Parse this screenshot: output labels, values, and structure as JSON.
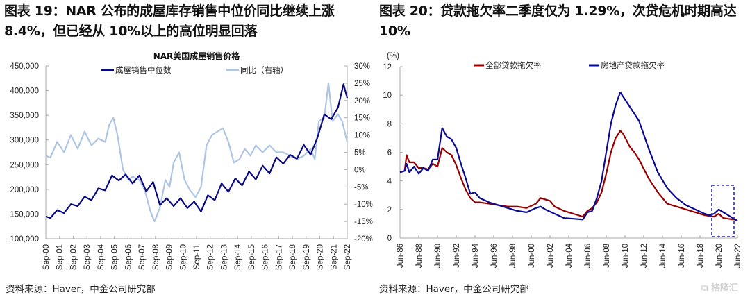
{
  "titles": {
    "left": "图表 19：NAR 公布的成屋库存销售中位价同比继续上涨 8.4%，但已经从 10%以上的高位明显回落",
    "right": "图表 20：贷款拖欠率二季度仅为 1.29%，次贷危机时期高达 10%"
  },
  "sources": {
    "left": "资料来源：Haver，中金公司研究部",
    "right": "资料来源：Haver，中金公司研究部"
  },
  "watermark": "格隆汇",
  "colors": {
    "navy": "#0a0a80",
    "lightblue": "#aec6e4",
    "darkred": "#960000",
    "blue": "#0a0a90",
    "neg": "#ff0000",
    "axis": "#aaaaaa"
  },
  "chart_data": [
    {
      "type": "line",
      "title": "NAR美国成屋销售价格",
      "x_ticks": [
        "Sep-00",
        "Sep-01",
        "Sep-02",
        "Sep-03",
        "Sep-04",
        "Sep-05",
        "Sep-06",
        "Sep-07",
        "Sep-08",
        "Sep-09",
        "Sep-10",
        "Sep-11",
        "Sep-12",
        "Sep-13",
        "Sep-14",
        "Sep-15",
        "Sep-16",
        "Sep-17",
        "Sep-18",
        "Sep-19",
        "Sep-20",
        "Sep-21",
        "Sep-22"
      ],
      "xlim": [
        2000.67,
        2022.67
      ],
      "y_left": {
        "ylim": [
          100000,
          450000
        ],
        "ticks": [
          "100,000",
          "150,000",
          "200,000",
          "250,000",
          "300,000",
          "350,000",
          "400,000",
          "450,000"
        ]
      },
      "y_right": {
        "ylim": [
          -20,
          30
        ],
        "ticks": [
          "-20%",
          "-15%",
          "-10%",
          "-5%",
          "0%",
          "5%",
          "10%",
          "15%",
          "20%",
          "25%",
          "30%"
        ]
      },
      "legend": "top",
      "series": [
        {
          "name": "成屋销售中位数",
          "axis": "left",
          "x": [
            2000.67,
            2001.0,
            2001.5,
            2002.0,
            2002.5,
            2003.0,
            2003.5,
            2004.0,
            2004.5,
            2005.0,
            2005.5,
            2006.0,
            2006.5,
            2007.0,
            2007.5,
            2008.0,
            2008.5,
            2009.0,
            2009.5,
            2010.0,
            2010.5,
            2011.0,
            2011.5,
            2012.0,
            2012.5,
            2013.0,
            2013.5,
            2014.0,
            2014.5,
            2015.0,
            2015.5,
            2016.0,
            2016.5,
            2017.0,
            2017.5,
            2018.0,
            2018.5,
            2019.0,
            2019.5,
            2020.0,
            2020.5,
            2021.0,
            2021.5,
            2022.0,
            2022.4,
            2022.67
          ],
          "values": [
            145000,
            142000,
            158000,
            152000,
            170000,
            166000,
            185000,
            178000,
            202000,
            198000,
            228000,
            218000,
            230000,
            212000,
            228000,
            196000,
            215000,
            168000,
            182000,
            166000,
            182000,
            162000,
            175000,
            155000,
            188000,
            178000,
            212000,
            195000,
            222000,
            208000,
            236000,
            220000,
            248000,
            232000,
            265000,
            252000,
            270000,
            262000,
            290000,
            270000,
            305000,
            352000,
            342000,
            366000,
            413000,
            385000
          ]
        },
        {
          "name": "同比（右轴）",
          "axis": "right",
          "x": [
            2000.67,
            2001.0,
            2001.5,
            2002.0,
            2002.5,
            2003.0,
            2003.5,
            2004.0,
            2004.5,
            2005.0,
            2005.3,
            2005.6,
            2005.9,
            2006.3,
            2006.7,
            2007.0,
            2007.5,
            2007.9,
            2008.3,
            2008.6,
            2009.0,
            2009.4,
            2009.7,
            2010.0,
            2010.4,
            2010.8,
            2011.2,
            2011.6,
            2012.0,
            2012.4,
            2012.8,
            2013.2,
            2013.6,
            2014.0,
            2014.4,
            2014.8,
            2015.2,
            2015.6,
            2016.0,
            2016.5,
            2017.0,
            2017.5,
            2018.0,
            2018.5,
            2019.0,
            2019.5,
            2020.0,
            2020.3,
            2020.6,
            2021.0,
            2021.3,
            2021.6,
            2022.0,
            2022.3,
            2022.67
          ],
          "values": [
            4,
            3.5,
            8,
            5,
            10,
            6,
            11,
            7,
            9,
            8,
            13,
            15,
            10,
            0,
            -3,
            -2,
            -3,
            -6,
            -12,
            -15,
            -11,
            -3,
            -5,
            2,
            5,
            -3,
            -6,
            -8,
            -5,
            7,
            10,
            11,
            12,
            8,
            2,
            3,
            6,
            4,
            7,
            5,
            7,
            5,
            5,
            4,
            3,
            4,
            6,
            3,
            14,
            15,
            25,
            14,
            16,
            14,
            8
          ]
        }
      ]
    },
    {
      "type": "line",
      "unit_label": "(%)",
      "x_ticks": [
        "Jun-86",
        "Jun-88",
        "Jun-90",
        "Jun-92",
        "Jun-94",
        "Jun-96",
        "Jun-98",
        "Jun-00",
        "Jun-02",
        "Jun-04",
        "Jun-06",
        "Jun-08",
        "Jun-10",
        "Jun-12",
        "Jun-14",
        "Jun-16",
        "Jun-18",
        "Jun-20",
        "Jun-22"
      ],
      "xlim": [
        1986.5,
        2022.5
      ],
      "ylim": [
        0,
        12
      ],
      "y_ticks": [
        "0",
        "2",
        "4",
        "6",
        "8",
        "10",
        "12"
      ],
      "legend": "top",
      "annotation": "dashed box around Jun-20 to Jun-22",
      "series": [
        {
          "name": "全部贷款拖欠率",
          "x": [
            1986.5,
            1987.0,
            1987.2,
            1987.5,
            1988.0,
            1988.5,
            1989.0,
            1989.5,
            1990.0,
            1990.5,
            1991.0,
            1991.5,
            1992.0,
            1992.5,
            1993.0,
            1993.5,
            1994.0,
            1994.5,
            1995.0,
            1996.0,
            1997.0,
            1998.0,
            1999.0,
            2000.0,
            2001.0,
            2001.5,
            2002.0,
            2002.5,
            2003.0,
            2004.0,
            2005.0,
            2006.0,
            2006.5,
            2007.0,
            2007.5,
            2008.0,
            2008.5,
            2009.0,
            2009.5,
            2010.0,
            2010.3,
            2011.0,
            2011.5,
            2012.0,
            2013.0,
            2014.0,
            2015.0,
            2016.0,
            2017.0,
            2018.0,
            2019.0,
            2020.0,
            2020.5,
            2021.0,
            2021.5,
            2022.0,
            2022.5
          ],
          "values": [
            4.6,
            4.7,
            5.8,
            5.3,
            5.3,
            4.9,
            4.9,
            4.8,
            5.2,
            5.0,
            6.3,
            6.0,
            5.8,
            5.1,
            4.2,
            3.4,
            2.8,
            2.5,
            2.5,
            2.4,
            2.3,
            2.2,
            2.2,
            2.1,
            2.4,
            2.8,
            2.7,
            2.6,
            2.2,
            1.9,
            1.7,
            1.5,
            1.9,
            2.1,
            2.5,
            3.2,
            4.5,
            6.0,
            7.0,
            7.5,
            7.3,
            6.4,
            6.0,
            5.5,
            4.2,
            3.2,
            2.4,
            2.2,
            2.0,
            1.8,
            1.6,
            1.5,
            1.7,
            1.4,
            1.35,
            1.3,
            1.29
          ]
        },
        {
          "name": "房地产贷款拖欠率",
          "x": [
            1986.5,
            1987.0,
            1987.2,
            1987.5,
            1988.0,
            1988.5,
            1989.0,
            1989.5,
            1990.0,
            1990.5,
            1991.0,
            1991.5,
            1992.0,
            1992.5,
            1993.0,
            1993.5,
            1994.0,
            1994.5,
            1995.0,
            1996.0,
            1997.0,
            1998.0,
            1999.0,
            2000.0,
            2001.0,
            2001.5,
            2002.0,
            2003.0,
            2004.0,
            2005.0,
            2006.0,
            2006.5,
            2007.0,
            2007.5,
            2008.0,
            2008.5,
            2009.0,
            2009.5,
            2010.0,
            2010.5,
            2011.0,
            2011.5,
            2012.0,
            2013.0,
            2014.0,
            2015.0,
            2016.0,
            2017.0,
            2018.0,
            2019.0,
            2019.5,
            2020.0,
            2020.5,
            2021.0,
            2021.5,
            2022.0,
            2022.5
          ],
          "values": [
            4.6,
            4.7,
            5.2,
            4.6,
            5.0,
            4.5,
            4.9,
            4.7,
            5.5,
            5.5,
            7.7,
            7.1,
            6.9,
            6.3,
            5.2,
            4.2,
            3.1,
            3.2,
            2.8,
            2.5,
            2.3,
            2.1,
            1.9,
            1.8,
            2.1,
            2.2,
            2.0,
            1.7,
            1.4,
            1.35,
            1.3,
            1.8,
            1.9,
            2.8,
            4.0,
            6.0,
            8.0,
            9.3,
            10.2,
            9.7,
            9.2,
            8.7,
            8.2,
            6.3,
            4.6,
            3.5,
            2.8,
            2.3,
            2.0,
            1.7,
            1.6,
            1.7,
            2.0,
            1.8,
            1.6,
            1.4,
            1.2
          ]
        }
      ]
    }
  ]
}
